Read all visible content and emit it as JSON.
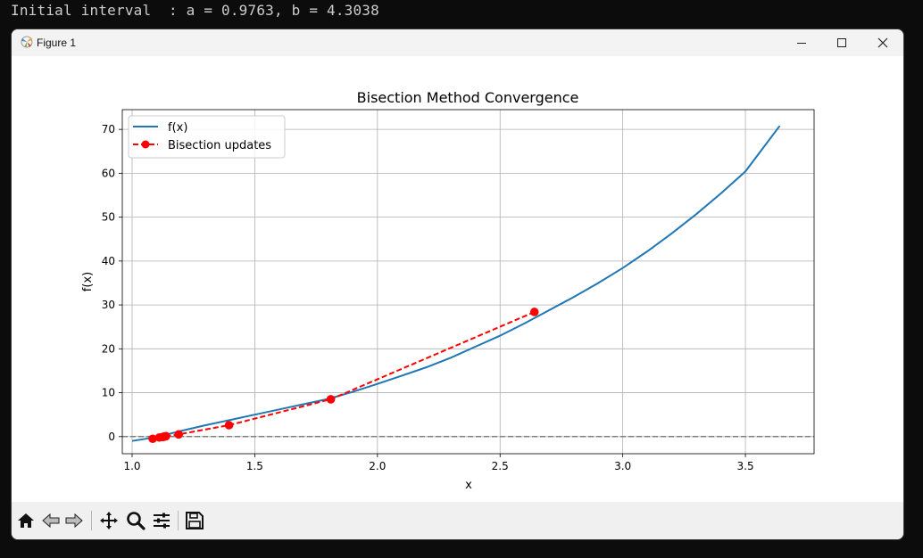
{
  "terminal": {
    "line": "Initial interval  : a = 0.9763, b = 4.3038"
  },
  "window": {
    "title": "Figure 1",
    "controls": [
      "minimize-icon",
      "maximize-icon",
      "close-icon"
    ]
  },
  "toolbar": {
    "buttons": [
      "home-icon",
      "back-icon",
      "forward-icon",
      "pan-icon",
      "zoom-icon",
      "configure-subplots-icon",
      "save-icon"
    ]
  },
  "chart_data": {
    "type": "line",
    "title": "Bisection Method Convergence",
    "xlabel": "x",
    "ylabel": "f(x)",
    "xlim": [
      0.96,
      3.78
    ],
    "ylim": [
      -3.9,
      74.5
    ],
    "xticks": [
      1.0,
      1.5,
      2.0,
      2.5,
      3.0,
      3.5
    ],
    "xtick_labels": [
      "1.0",
      "1.5",
      "2.0",
      "2.5",
      "3.0",
      "3.5"
    ],
    "yticks": [
      0,
      10,
      20,
      30,
      40,
      50,
      60,
      70
    ],
    "ytick_labels": [
      "0",
      "10",
      "20",
      "30",
      "40",
      "50",
      "60",
      "70"
    ],
    "grid": true,
    "legend_position": "top-left",
    "reference_line": {
      "y": 0,
      "color": "#808080",
      "style": "dashed"
    },
    "series": [
      {
        "name": "f(x)",
        "color": "#1f77b4",
        "style": "solid",
        "x": [
          1.0,
          1.1,
          1.2,
          1.3,
          1.4,
          1.5,
          1.6,
          1.7,
          1.8,
          1.9,
          2.0,
          2.1,
          2.2,
          2.3,
          2.4,
          2.5,
          2.6,
          2.7,
          2.8,
          2.9,
          3.0,
          3.1,
          3.2,
          3.3,
          3.4,
          3.5,
          3.64
        ],
        "y": [
          -1.0,
          -0.1,
          1.3,
          2.6,
          3.8,
          5.0,
          6.2,
          7.4,
          8.6,
          10.2,
          12.0,
          13.9,
          15.8,
          18.0,
          20.5,
          23.0,
          25.8,
          28.8,
          31.8,
          35.0,
          38.4,
          42.2,
          46.3,
          50.7,
          55.4,
          60.4,
          70.8
        ]
      },
      {
        "name": "Bisection updates",
        "color": "#ff0000",
        "style": "dashed",
        "marker": "circle",
        "x": [
          2.64,
          1.81,
          1.395,
          1.19,
          1.084,
          1.138,
          1.111,
          1.124,
          1.131,
          1.127
        ],
        "y": [
          28.4,
          8.5,
          2.6,
          0.5,
          -0.5,
          0.1,
          -0.2,
          -0.1,
          0.0,
          -0.05
        ]
      }
    ]
  }
}
